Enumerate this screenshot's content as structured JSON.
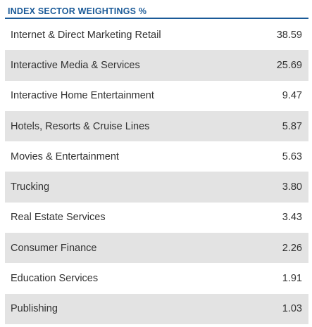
{
  "header": {
    "title": "INDEX SECTOR WEIGHTINGS %"
  },
  "colors": {
    "title_text": "#1a5a98",
    "rule": "#1a5a98",
    "shaded_row": "#e3e3e3",
    "row_text": "#333333"
  },
  "table": {
    "rows": [
      {
        "label": "Internet & Direct Marketing Retail",
        "value": "38.59"
      },
      {
        "label": "Interactive Media & Services",
        "value": "25.69"
      },
      {
        "label": "Interactive Home Entertainment",
        "value": "9.47"
      },
      {
        "label": "Hotels, Resorts & Cruise Lines",
        "value": "5.87"
      },
      {
        "label": "Movies & Entertainment",
        "value": "5.63"
      },
      {
        "label": "Trucking",
        "value": "3.80"
      },
      {
        "label": "Real Estate Services",
        "value": "3.43"
      },
      {
        "label": "Consumer Finance",
        "value": "2.26"
      },
      {
        "label": "Education Services",
        "value": "1.91"
      },
      {
        "label": "Publishing",
        "value": "1.03"
      }
    ]
  }
}
